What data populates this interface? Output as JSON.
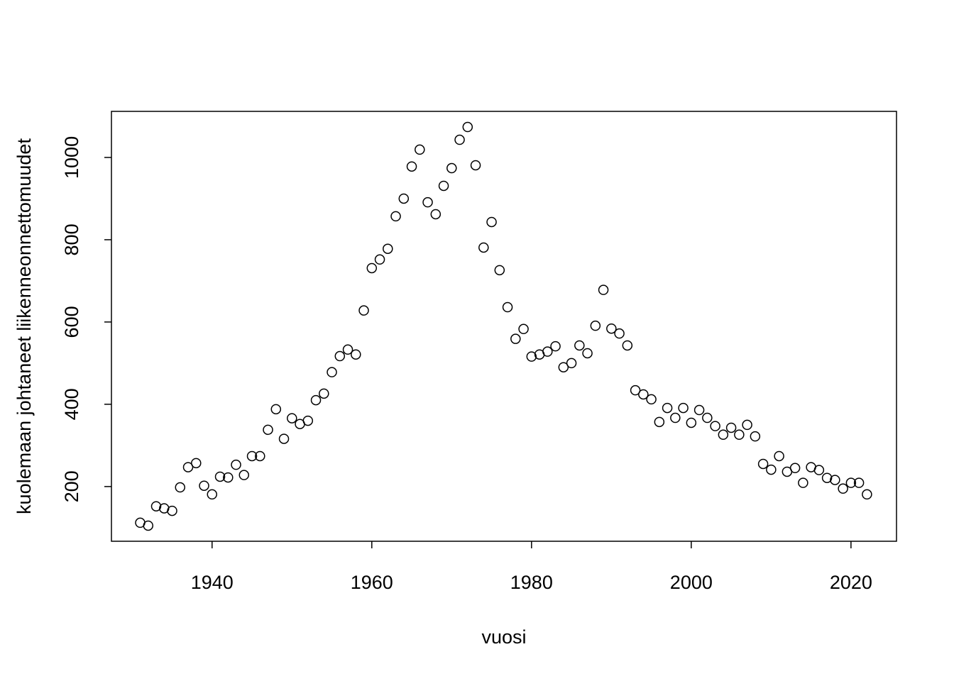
{
  "chart_data": {
    "type": "scatter",
    "x_label": "vuosi",
    "y_label": "kuolemaan johtaneet liikenneonnettomuudet",
    "x": [
      1931,
      1932,
      1933,
      1934,
      1935,
      1936,
      1937,
      1938,
      1939,
      1940,
      1941,
      1942,
      1943,
      1944,
      1945,
      1946,
      1947,
      1948,
      1949,
      1950,
      1951,
      1952,
      1953,
      1954,
      1955,
      1956,
      1957,
      1958,
      1959,
      1960,
      1961,
      1962,
      1963,
      1964,
      1965,
      1966,
      1967,
      1968,
      1969,
      1970,
      1971,
      1972,
      1973,
      1974,
      1975,
      1976,
      1977,
      1978,
      1979,
      1980,
      1981,
      1982,
      1983,
      1984,
      1985,
      1986,
      1987,
      1988,
      1989,
      1990,
      1991,
      1992,
      1993,
      1994,
      1995,
      1996,
      1997,
      1998,
      1999,
      2000,
      2001,
      2002,
      2003,
      2004,
      2005,
      2006,
      2007,
      2008,
      2009,
      2010,
      2011,
      2012,
      2013,
      2014,
      2015,
      2016,
      2017,
      2018,
      2019,
      2020,
      2021,
      2022
    ],
    "values": [
      112,
      105,
      152,
      147,
      141,
      198,
      247,
      257,
      202,
      181,
      224,
      222,
      253,
      228,
      274,
      274,
      338,
      388,
      316,
      366,
      352,
      360,
      410,
      426,
      478,
      517,
      533,
      521,
      628,
      731,
      752,
      778,
      857,
      900,
      978,
      1019,
      891,
      862,
      931,
      974,
      1043,
      1074,
      981,
      781,
      843,
      726,
      636,
      559,
      583,
      516,
      521,
      528,
      541,
      490,
      500,
      543,
      524,
      591,
      678,
      584,
      572,
      543,
      434,
      424,
      412,
      357,
      391,
      367,
      391,
      355,
      386,
      367,
      347,
      326,
      343,
      326,
      350,
      322,
      255,
      241,
      274,
      236,
      245,
      209,
      247,
      240,
      221,
      216,
      195,
      209,
      209,
      181
    ],
    "color": "#000000",
    "xlim": [
      1927.4,
      2025.7
    ],
    "xticks": [
      1940,
      1960,
      1980,
      2000,
      2020
    ],
    "ylim": [
      67,
      1112
    ],
    "yticks": [
      200,
      400,
      600,
      800,
      1000
    ],
    "grid": false
  }
}
